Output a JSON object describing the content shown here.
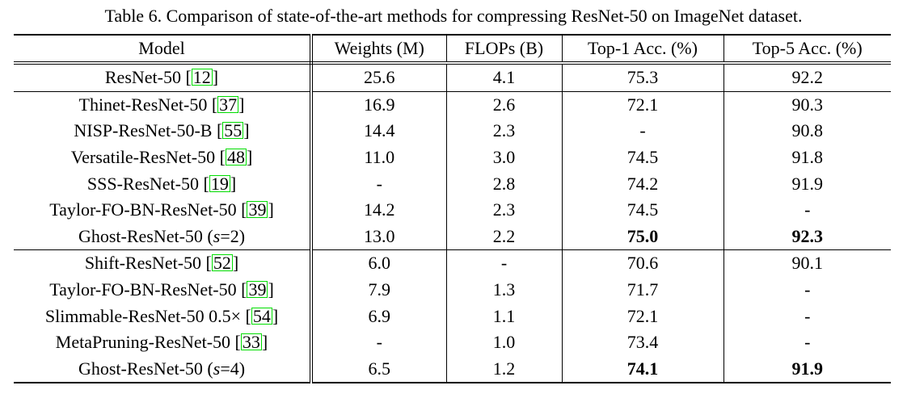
{
  "caption": "Table 6. Comparison of state-of-the-art methods for compressing ResNet-50 on ImageNet dataset.",
  "headers": [
    "Model",
    "Weights (M)",
    "FLOPs (B)",
    "Top-1 Acc. (%)",
    "Top-5 Acc. (%)"
  ],
  "colors": {
    "text": "#000000",
    "rule": "#000000",
    "background": "#ffffff",
    "citation_box": "#00dd00"
  },
  "groups": [
    {
      "rows": [
        {
          "model": [
            {
              "t": "ResNet-50 ["
            },
            {
              "t": "12",
              "cite": true
            },
            {
              "t": "]"
            }
          ],
          "cells": [
            {
              "v": "25.6"
            },
            {
              "v": "4.1"
            },
            {
              "v": "75.3"
            },
            {
              "v": "92.2"
            }
          ]
        }
      ]
    },
    {
      "rows": [
        {
          "model": [
            {
              "t": "Thinet-ResNet-50 ["
            },
            {
              "t": "37",
              "cite": true
            },
            {
              "t": "]"
            }
          ],
          "cells": [
            {
              "v": "16.9"
            },
            {
              "v": "2.6"
            },
            {
              "v": "72.1"
            },
            {
              "v": "90.3"
            }
          ]
        },
        {
          "model": [
            {
              "t": "NISP-ResNet-50-B ["
            },
            {
              "t": "55",
              "cite": true
            },
            {
              "t": "]"
            }
          ],
          "cells": [
            {
              "v": "14.4"
            },
            {
              "v": "2.3"
            },
            {
              "v": "-"
            },
            {
              "v": "90.8"
            }
          ]
        },
        {
          "model": [
            {
              "t": "Versatile-ResNet-50 ["
            },
            {
              "t": "48",
              "cite": true
            },
            {
              "t": "]"
            }
          ],
          "cells": [
            {
              "v": "11.0"
            },
            {
              "v": "3.0"
            },
            {
              "v": "74.5"
            },
            {
              "v": "91.8"
            }
          ]
        },
        {
          "model": [
            {
              "t": "SSS-ResNet-50 ["
            },
            {
              "t": "19",
              "cite": true
            },
            {
              "t": "]"
            }
          ],
          "cells": [
            {
              "v": "-"
            },
            {
              "v": "2.8"
            },
            {
              "v": "74.2"
            },
            {
              "v": "91.9"
            }
          ]
        },
        {
          "model": [
            {
              "t": "Taylor-FO-BN-ResNet-50 ["
            },
            {
              "t": "39",
              "cite": true
            },
            {
              "t": "]"
            }
          ],
          "cells": [
            {
              "v": "14.2"
            },
            {
              "v": "2.3"
            },
            {
              "v": "74.5"
            },
            {
              "v": "-"
            }
          ]
        },
        {
          "model": [
            {
              "t": "Ghost-ResNet-50 ("
            },
            {
              "t": "s",
              "i": true
            },
            {
              "t": "=2)"
            }
          ],
          "cells": [
            {
              "v": "13.0"
            },
            {
              "v": "2.2"
            },
            {
              "v": "75.0",
              "b": true
            },
            {
              "v": "92.3",
              "b": true
            }
          ]
        }
      ]
    },
    {
      "rows": [
        {
          "model": [
            {
              "t": "Shift-ResNet-50 ["
            },
            {
              "t": "52",
              "cite": true
            },
            {
              "t": "]"
            }
          ],
          "cells": [
            {
              "v": "6.0"
            },
            {
              "v": "-"
            },
            {
              "v": "70.6"
            },
            {
              "v": "90.1"
            }
          ]
        },
        {
          "model": [
            {
              "t": "Taylor-FO-BN-ResNet-50 ["
            },
            {
              "t": "39",
              "cite": true
            },
            {
              "t": "]"
            }
          ],
          "cells": [
            {
              "v": "7.9"
            },
            {
              "v": "1.3"
            },
            {
              "v": "71.7"
            },
            {
              "v": "-"
            }
          ]
        },
        {
          "model": [
            {
              "t": "Slimmable-ResNet-50 0.5× ["
            },
            {
              "t": "54",
              "cite": true
            },
            {
              "t": "]"
            }
          ],
          "cells": [
            {
              "v": "6.9"
            },
            {
              "v": "1.1"
            },
            {
              "v": "72.1"
            },
            {
              "v": "-"
            }
          ]
        },
        {
          "model": [
            {
              "t": "MetaPruning-ResNet-50 ["
            },
            {
              "t": "33",
              "cite": true
            },
            {
              "t": "]"
            }
          ],
          "cells": [
            {
              "v": "-"
            },
            {
              "v": "1.0"
            },
            {
              "v": "73.4"
            },
            {
              "v": "-"
            }
          ]
        },
        {
          "model": [
            {
              "t": "Ghost-ResNet-50 ("
            },
            {
              "t": "s",
              "i": true
            },
            {
              "t": "=4)"
            }
          ],
          "cells": [
            {
              "v": "6.5"
            },
            {
              "v": "1.2"
            },
            {
              "v": "74.1",
              "b": true
            },
            {
              "v": "91.9",
              "b": true
            }
          ]
        }
      ]
    }
  ]
}
